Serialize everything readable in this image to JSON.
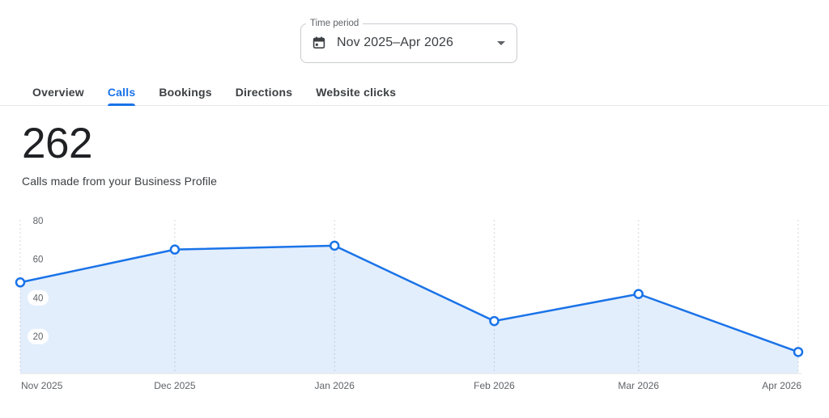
{
  "time_period": {
    "label": "Time period",
    "value": "Nov 2025–Apr 2026"
  },
  "tabs": [
    {
      "label": "Overview",
      "active": false
    },
    {
      "label": "Calls",
      "active": true
    },
    {
      "label": "Bookings",
      "active": false
    },
    {
      "label": "Directions",
      "active": false
    },
    {
      "label": "Website clicks",
      "active": false
    }
  ],
  "metric": {
    "value": "262",
    "description": "Calls made from your Business Profile"
  },
  "chart_data": {
    "type": "area",
    "title": "Calls made from your Business Profile",
    "categories": [
      "Nov 2025",
      "Dec 2025",
      "Jan 2026",
      "Feb 2026",
      "Mar 2026",
      "Apr 2026"
    ],
    "x_day_offsets": [
      0,
      30,
      61,
      92,
      120,
      151
    ],
    "values": [
      48,
      65,
      67,
      28,
      42,
      12
    ],
    "total": 262,
    "yticks": [
      20,
      40,
      60,
      80
    ],
    "ylim": [
      0,
      85
    ],
    "grid": "vertical-dashed",
    "legend": "none",
    "colors": {
      "line": "#1a73e8",
      "area": "rgba(26,115,232,0.12)",
      "point_fill": "#ffffff",
      "gridline": "#d5d8dc",
      "axis_line": "#e0e2e6",
      "tick_text": "#5f6368",
      "tick_pill": "#ffffff"
    }
  }
}
